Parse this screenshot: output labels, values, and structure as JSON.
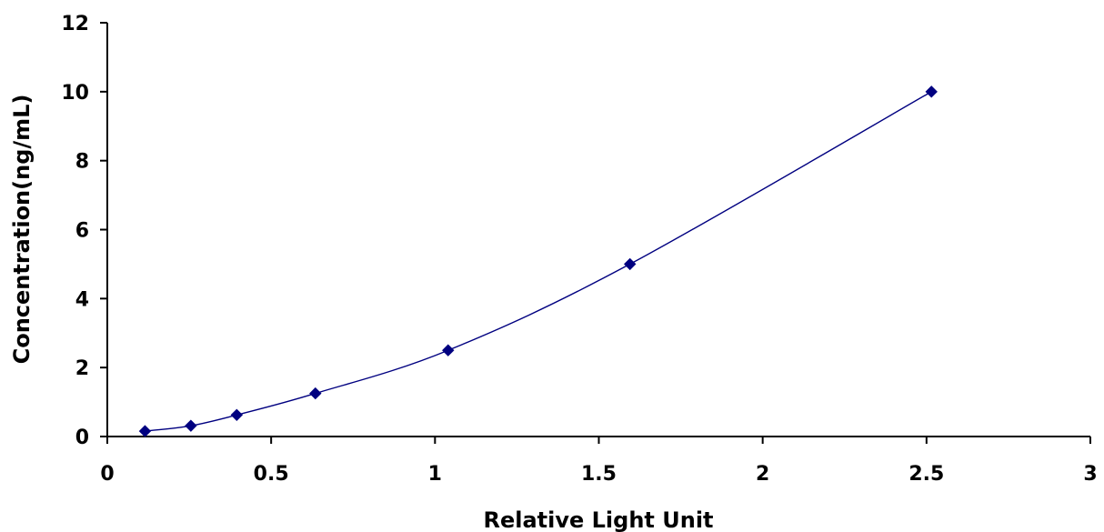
{
  "chart_data": {
    "type": "scatter",
    "xlabel": "Relative Light Unit",
    "ylabel": "Concentration(ng/mL)",
    "xlim": [
      0,
      3
    ],
    "ylim": [
      0,
      12
    ],
    "xticks": [
      0,
      0.5,
      1,
      1.5,
      2,
      2.5,
      3
    ],
    "xtick_labels": [
      "0",
      "0.5",
      "1",
      "1.5",
      "2",
      "2.5",
      "3"
    ],
    "yticks": [
      0,
      2,
      4,
      6,
      8,
      10,
      12
    ],
    "ytick_labels": [
      "0",
      "2",
      "4",
      "6",
      "8",
      "10",
      "12"
    ],
    "grid": false,
    "legend": false,
    "series": [
      {
        "marker": "diamond",
        "line": "smooth",
        "color": "#000080",
        "x": [
          0.115,
          0.255,
          0.395,
          0.635,
          1.04,
          1.595,
          2.515
        ],
        "y": [
          0.156,
          0.312,
          0.625,
          1.25,
          2.5,
          5,
          10
        ]
      }
    ]
  }
}
